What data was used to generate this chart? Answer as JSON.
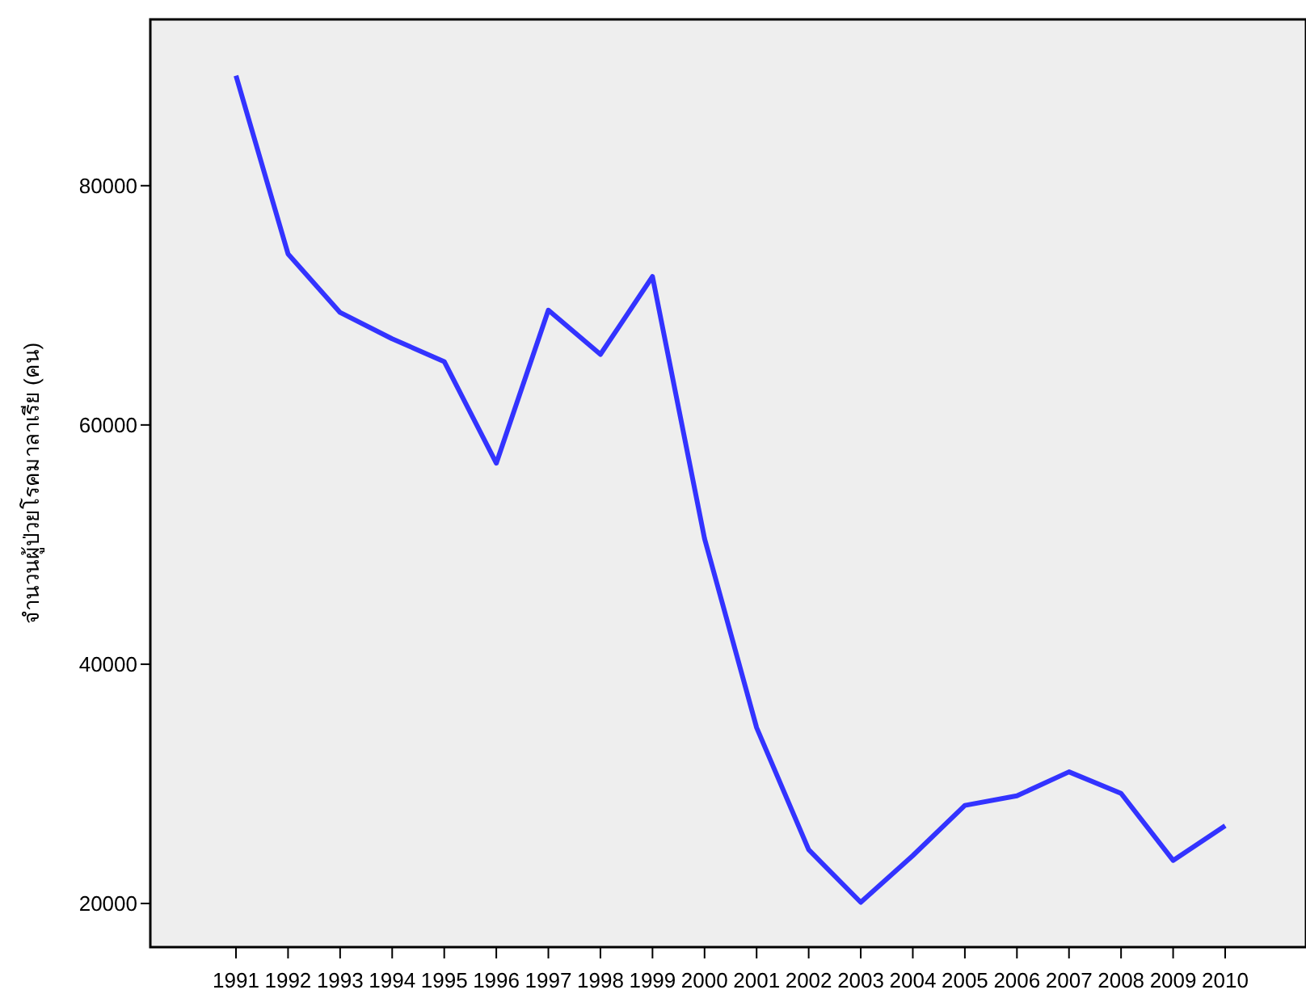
{
  "chart_data": {
    "type": "line",
    "ylabel": "จำนวนผู้ป่วยโรคมาลาเรีย (คน)",
    "categories": [
      "1991",
      "1992",
      "1993",
      "1994",
      "1995",
      "1996",
      "1997",
      "1998",
      "1999",
      "2000",
      "2001",
      "2002",
      "2003",
      "2004",
      "2005",
      "2006",
      "2007",
      "2008",
      "2009",
      "2010"
    ],
    "series": [
      {
        "color": "#3333ff",
        "values": [
          89200,
          74300,
          69400,
          67200,
          65300,
          56800,
          69600,
          65900,
          72400,
          50500,
          34700,
          24500,
          20100,
          24000,
          28200,
          29000,
          31000,
          29200,
          23600,
          26500
        ]
      }
    ],
    "ylim": [
      16350,
      93900
    ],
    "yticks": [
      20000,
      40000,
      60000,
      80000
    ]
  }
}
